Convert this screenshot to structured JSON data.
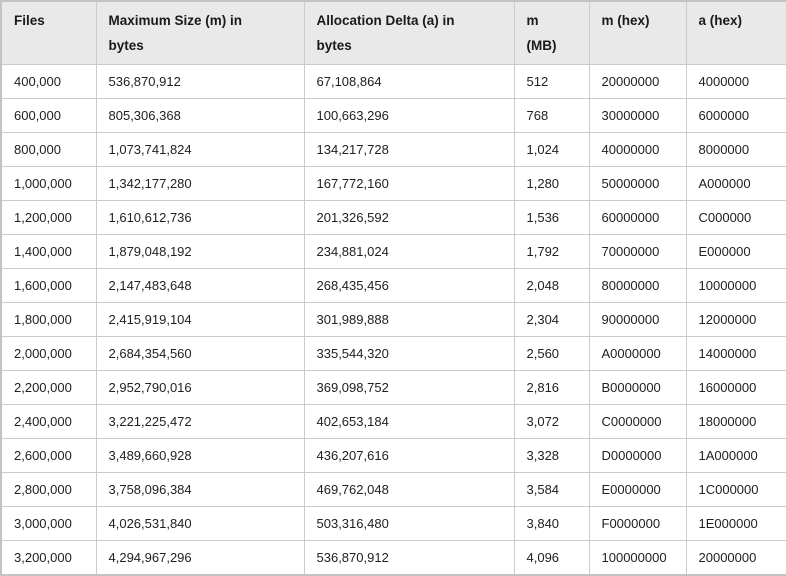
{
  "table": {
    "columns": [
      {
        "label": "Files"
      },
      {
        "label": "Maximum Size (m) in\nbytes"
      },
      {
        "label": "Allocation Delta (a) in\nbytes"
      },
      {
        "label": "m\n(MB)"
      },
      {
        "label": "m (hex)"
      },
      {
        "label": "a (hex)"
      }
    ],
    "rows": [
      [
        "400,000",
        "536,870,912",
        "67,108,864",
        "512",
        "20000000",
        "4000000"
      ],
      [
        "600,000",
        "805,306,368",
        "100,663,296",
        "768",
        "30000000",
        "6000000"
      ],
      [
        "800,000",
        "1,073,741,824",
        "134,217,728",
        "1,024",
        "40000000",
        "8000000"
      ],
      [
        "1,000,000",
        "1,342,177,280",
        "167,772,160",
        "1,280",
        "50000000",
        "A000000"
      ],
      [
        "1,200,000",
        "1,610,612,736",
        "201,326,592",
        "1,536",
        "60000000",
        "C000000"
      ],
      [
        "1,400,000",
        "1,879,048,192",
        "234,881,024",
        "1,792",
        "70000000",
        "E000000"
      ],
      [
        "1,600,000",
        "2,147,483,648",
        "268,435,456",
        "2,048",
        "80000000",
        "10000000"
      ],
      [
        "1,800,000",
        "2,415,919,104",
        "301,989,888",
        "2,304",
        "90000000",
        "12000000"
      ],
      [
        "2,000,000",
        "2,684,354,560",
        "335,544,320",
        "2,560",
        "A0000000",
        "14000000"
      ],
      [
        "2,200,000",
        "2,952,790,016",
        "369,098,752",
        "2,816",
        "B0000000",
        "16000000"
      ],
      [
        "2,400,000",
        "3,221,225,472",
        "402,653,184",
        "3,072",
        "C0000000",
        "18000000"
      ],
      [
        "2,600,000",
        "3,489,660,928",
        "436,207,616",
        "3,328",
        "D0000000",
        "1A000000"
      ],
      [
        "2,800,000",
        "3,758,096,384",
        "469,762,048",
        "3,584",
        "E0000000",
        "1C000000"
      ],
      [
        "3,000,000",
        "4,026,531,840",
        "503,316,480",
        "3,840",
        "F0000000",
        "1E000000"
      ],
      [
        "3,200,000",
        "4,294,967,296",
        "536,870,912",
        "4,096",
        "100000000",
        "20000000"
      ]
    ]
  },
  "colors": {
    "header_bg": "#e9e9e9",
    "inner_border": "#cbcbcb",
    "outer_border": "#c3c3c3",
    "text": "#212121"
  }
}
